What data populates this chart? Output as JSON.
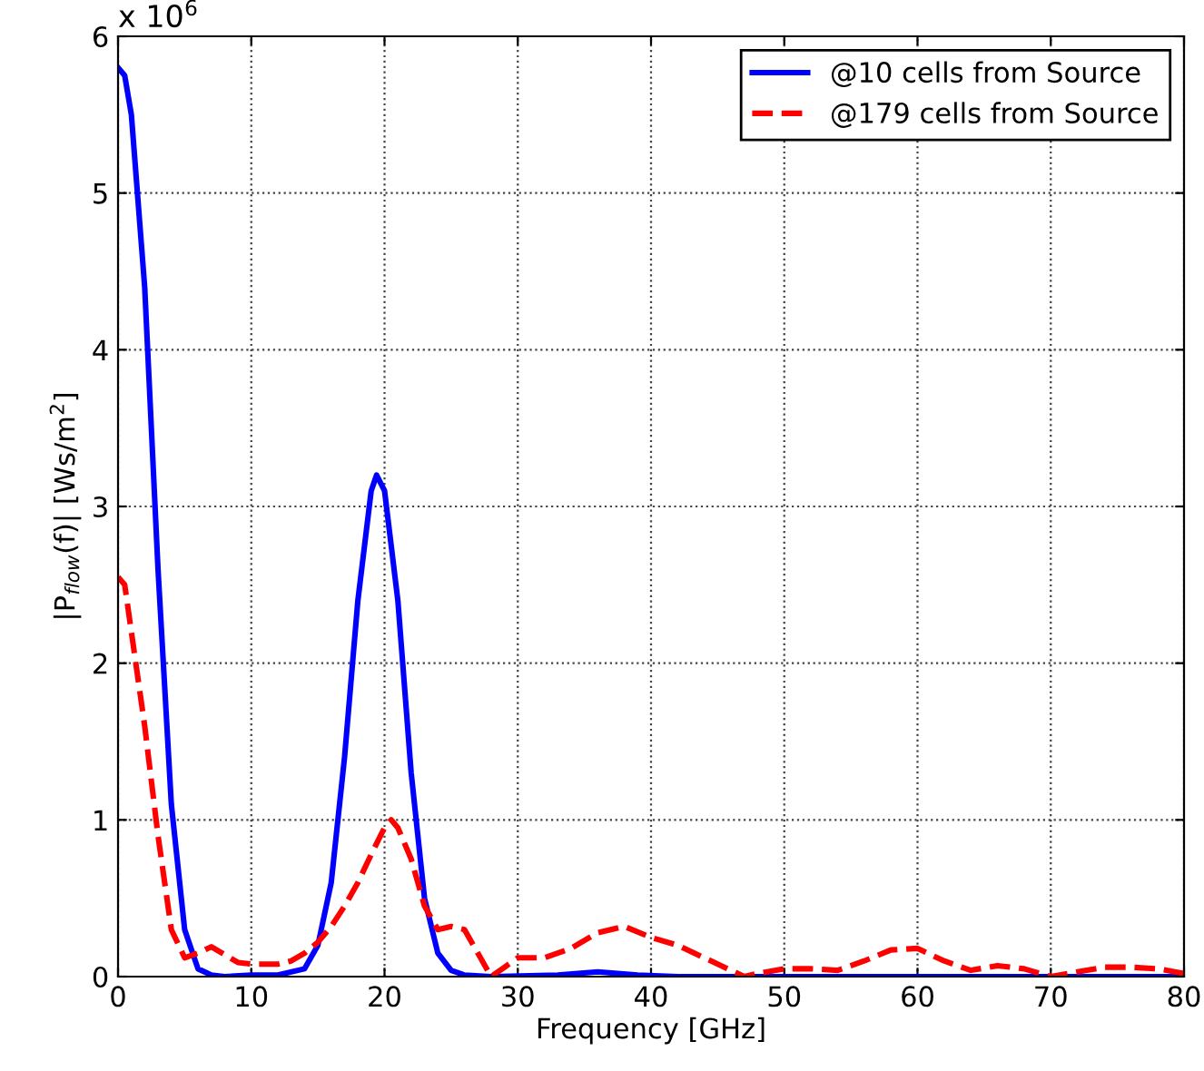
{
  "chart_data": {
    "type": "line",
    "xlabel": "Frequency [GHz]",
    "ylabel": "|P$_{flow}$(f)| [Ws/m$^{2}$]",
    "annotations": [
      "x 10$^{6}$"
    ],
    "xlim": [
      0,
      80
    ],
    "xticks": [
      0,
      10,
      20,
      30,
      40,
      50,
      60,
      70,
      80
    ],
    "ylim": [
      0,
      6
    ],
    "yticks": [
      0,
      1,
      2,
      3,
      4,
      5,
      6
    ],
    "grid": true,
    "legend": "top right",
    "series": [
      {
        "name": "@10 cells from Source",
        "color": "#0000ff",
        "line_style": "solid",
        "x": [
          0,
          0.5,
          1,
          2,
          3,
          4,
          5,
          6,
          7,
          8,
          10,
          12,
          14,
          15,
          16,
          17,
          18,
          19,
          19.4,
          20,
          21,
          22,
          23,
          24,
          25,
          26,
          28,
          33,
          36,
          39,
          42,
          80
        ],
        "values": [
          5.8,
          5.75,
          5.5,
          4.4,
          2.6,
          1.1,
          0.3,
          0.05,
          0.01,
          0,
          0.01,
          0.01,
          0.05,
          0.2,
          0.6,
          1.4,
          2.4,
          3.1,
          3.2,
          3.1,
          2.4,
          1.3,
          0.5,
          0.15,
          0.04,
          0.01,
          0,
          0.01,
          0.03,
          0.01,
          0,
          0
        ]
      },
      {
        "name": "@179 cells from Source",
        "color": "#ff0000",
        "line_style": "dashed",
        "x": [
          0,
          0.5,
          1,
          2,
          3,
          4,
          5,
          6,
          7,
          8,
          9,
          10,
          12,
          13,
          14,
          15,
          16,
          17,
          18,
          19,
          20,
          20.5,
          21,
          22,
          23,
          24,
          25,
          26,
          27,
          28,
          29,
          30,
          32,
          34,
          36,
          38,
          40,
          42,
          44,
          46,
          47,
          48,
          50,
          52,
          54,
          56,
          58,
          60,
          62,
          64,
          66,
          68,
          70,
          72,
          74,
          76,
          78,
          80
        ],
        "values": [
          2.55,
          2.5,
          2.2,
          1.6,
          0.9,
          0.3,
          0.12,
          0.15,
          0.19,
          0.14,
          0.09,
          0.08,
          0.08,
          0.1,
          0.15,
          0.22,
          0.32,
          0.45,
          0.6,
          0.78,
          0.95,
          1.0,
          0.95,
          0.75,
          0.45,
          0.3,
          0.32,
          0.3,
          0.15,
          0,
          0.06,
          0.12,
          0.12,
          0.18,
          0.28,
          0.32,
          0.25,
          0.2,
          0.12,
          0.04,
          0,
          0.02,
          0.05,
          0.05,
          0.04,
          0.1,
          0.17,
          0.18,
          0.1,
          0.04,
          0.07,
          0.05,
          0,
          0.03,
          0.06,
          0.06,
          0.05,
          0.02
        ]
      }
    ]
  }
}
